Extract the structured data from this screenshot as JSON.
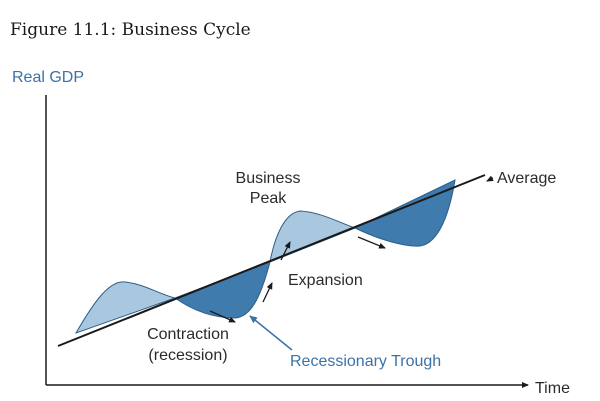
{
  "figure": {
    "title": "Figure 11.1: Business Cycle"
  },
  "axes": {
    "y_label": "Real GDP",
    "x_label": "Time"
  },
  "labels": {
    "average": "Average",
    "peak_line1": "Business",
    "peak_line2": "Peak",
    "expansion": "Expansion",
    "contraction_line1": "Contraction",
    "contraction_line2": "(recession)",
    "trough": "Recessionary Trough"
  },
  "colors": {
    "above_fill": "#a9c8e0",
    "below_fill": "#3f7cad",
    "curve_stroke": "#2d5e86",
    "axis": "#1a1a1a",
    "text": "#2b2b2b",
    "trough_text": "#3b72a8"
  }
}
